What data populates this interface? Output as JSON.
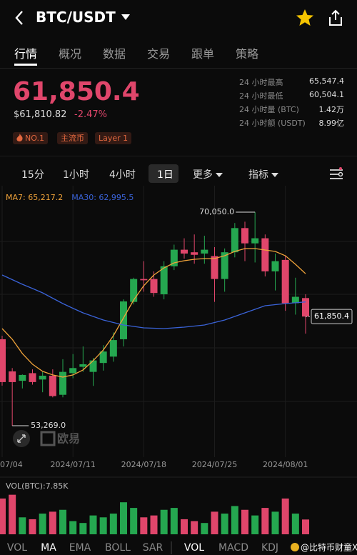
{
  "header": {
    "title": "BTC/USDT"
  },
  "tabs": [
    "行情",
    "概况",
    "数据",
    "交易",
    "跟单",
    "策略"
  ],
  "ticker": {
    "price": "61,850.4",
    "usd_price": "$61,810.82",
    "change": "-2.47%",
    "tags": [
      "NO.1",
      "主流币",
      "Layer 1"
    ]
  },
  "stats": [
    [
      "24 小时最高",
      "65,547.4"
    ],
    [
      "24 小时最低",
      "60,504.1"
    ],
    [
      "24 小时量 (BTC)",
      "1.42万"
    ],
    [
      "24 小时额 (USDT)",
      "8.99亿"
    ]
  ],
  "intervals": [
    "15分",
    "1小时",
    "4小时",
    "1日",
    "更多",
    "指标"
  ],
  "indicators": [
    "VOL",
    "MA",
    "EMA",
    "BOLL",
    "SAR",
    "VOL",
    "MACD",
    "KDJ"
  ],
  "watermark": [
    "欧易",
    "@比特币财童X"
  ],
  "chart_data": [
    {
      "type": "candlestick",
      "categories": [
        "07/04",
        null,
        null,
        null,
        null,
        null,
        null,
        "2024/07/11",
        null,
        null,
        null,
        null,
        null,
        null,
        "2024/07/18",
        null,
        null,
        null,
        null,
        null,
        null,
        "2024/07/25",
        null,
        null,
        null,
        null,
        null,
        null,
        "2024/08/01",
        null,
        null
      ],
      "open": [
        60064,
        57540,
        56800,
        57400,
        56900,
        57200,
        55700,
        57400,
        57900,
        57500,
        58200,
        58700,
        60064,
        63000,
        64800,
        64800,
        63600,
        65800,
        67100,
        66900,
        66800,
        66600,
        64800,
        66900,
        68800,
        67600,
        68000,
        65400,
        66300,
        62900,
        63300
      ],
      "high": [
        60345,
        57800,
        57300,
        57700,
        57500,
        57700,
        58500,
        58900,
        59500,
        58600,
        59600,
        60600,
        63200,
        64900,
        66200,
        65400,
        66200,
        67500,
        68000,
        68300,
        68200,
        67300,
        67200,
        69200,
        69300,
        70050,
        68300,
        66800,
        66600,
        64900,
        63600
      ],
      "low": [
        56418,
        53269,
        56200,
        56500,
        55900,
        55500,
        55500,
        57000,
        57500,
        56400,
        57600,
        58300,
        59500,
        62800,
        63800,
        63400,
        63200,
        65500,
        66400,
        66000,
        66000,
        63000,
        63800,
        66500,
        66200,
        66100,
        65000,
        63900,
        62300,
        62000,
        60504.1
      ],
      "close": [
        56698,
        56698,
        57259,
        56700,
        57200,
        55600,
        57500,
        57800,
        58100,
        58400,
        59100,
        60000,
        63038,
        64800,
        64700,
        63700,
        65800,
        67100,
        66800,
        66700,
        67100,
        64800,
        66900,
        68800,
        67600,
        68000,
        65400,
        66200,
        62900,
        63400,
        61850.4
      ],
      "up_color": "#25a750",
      "down_color": "#e0466b",
      "series": [
        {
          "name": "MA7: 65,217.2",
          "type": "line",
          "color": "#f0a33a",
          "values": [
            60906,
            60064,
            58942,
            58101,
            57540,
            57259,
            57090,
            57259,
            57652,
            58381,
            59223,
            60345,
            61747,
            63150,
            64272,
            65113,
            65674,
            66067,
            66235,
            66347,
            66404,
            66404,
            66628,
            66965,
            67189,
            67189,
            67077,
            66965,
            66628,
            65955,
            65217.2
          ]
        },
        {
          "name": "MA30: 62,995.5",
          "type": "line",
          "color": "#3a63d8",
          "values": [
            65113,
            64750,
            64384,
            64050,
            63711,
            63290,
            62869,
            62500,
            62140,
            61860,
            61579,
            61380,
            61186,
            61070,
            60962,
            60930,
            60906,
            60960,
            61018,
            61100,
            61186,
            61380,
            61579,
            61860,
            62140,
            62420,
            62701,
            62785,
            62869,
            62930,
            62995.5
          ]
        }
      ],
      "annotations": [
        {
          "value": 70050,
          "label": "70,050.0"
        },
        {
          "value": 53269,
          "label": "53,269.0"
        },
        {
          "value": 61850.4,
          "label": "61,850.4"
        }
      ],
      "ylim": [
        50800,
        72130
      ],
      "grid": true
    },
    {
      "type": "bar",
      "title": "VOL(BTC):7.85K",
      "values": [
        19000,
        21000,
        9000,
        8000,
        11000,
        12000,
        13000,
        7000,
        6000,
        10000,
        9000,
        11000,
        17000,
        14000,
        9000,
        10000,
        13000,
        14000,
        8000,
        7000,
        6000,
        12000,
        11000,
        15000,
        13000,
        10000,
        14000,
        12000,
        19000,
        11000,
        7850
      ],
      "ylim": [
        0,
        22000
      ]
    }
  ]
}
